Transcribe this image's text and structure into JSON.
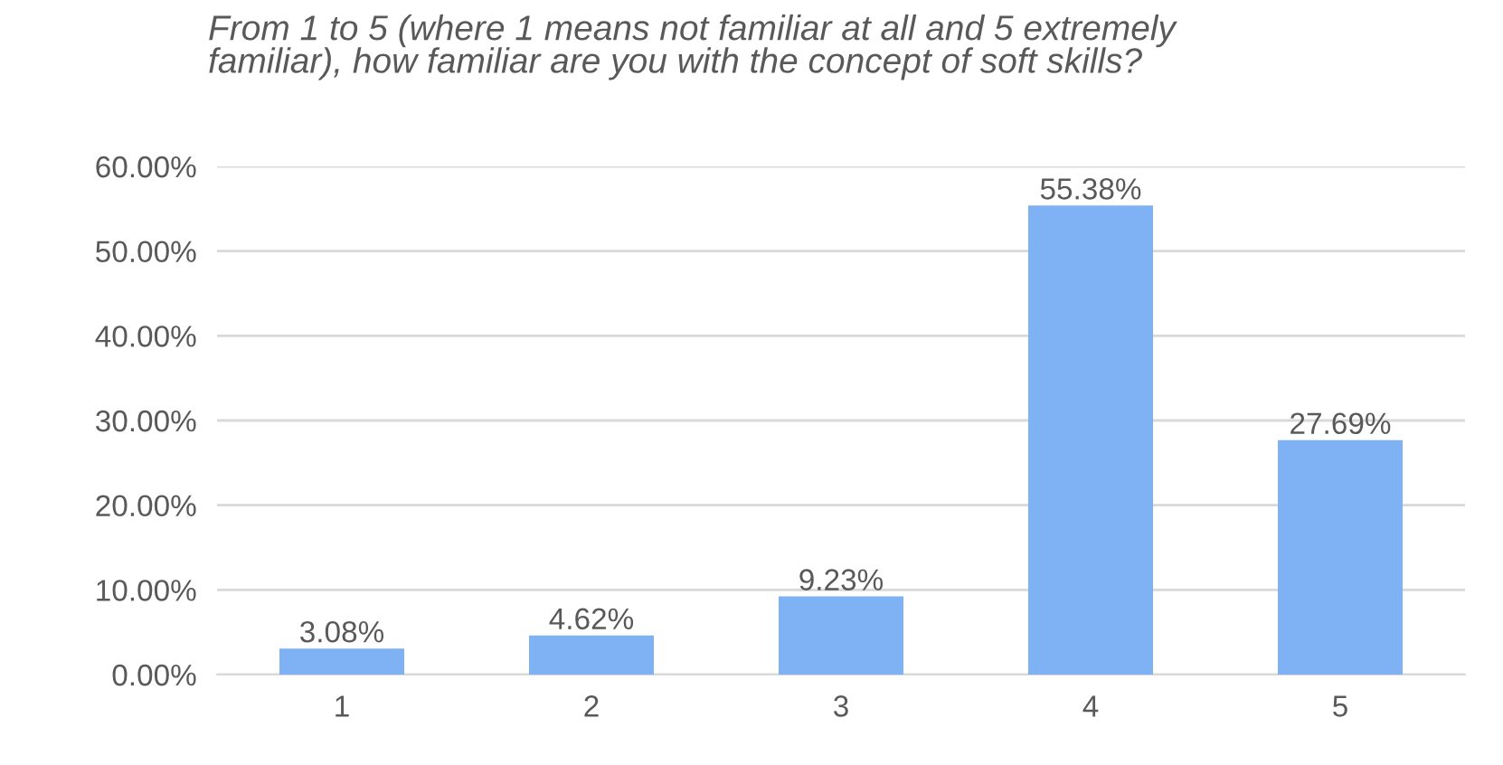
{
  "chart_data": {
    "type": "bar",
    "title": "From 1 to 5 (where 1 means not familiar at all and 5 extremely\nfamiliar), how familiar are you with the concept of soft skills?",
    "categories": [
      "1",
      "2",
      "3",
      "4",
      "5"
    ],
    "values": [
      3.08,
      4.62,
      9.23,
      55.38,
      27.69
    ],
    "value_labels": [
      "3.08%",
      "4.62%",
      "9.23%",
      "55.38%",
      "27.69%"
    ],
    "color": "#7fb2f4",
    "ylim": [
      0,
      60
    ],
    "yticks": [
      {
        "value": 0,
        "label": "0.00%"
      },
      {
        "value": 10,
        "label": "10.00%"
      },
      {
        "value": 20,
        "label": "20.00%"
      },
      {
        "value": 30,
        "label": "30.00%"
      },
      {
        "value": 40,
        "label": "40.00%"
      },
      {
        "value": 50,
        "label": "50.00%"
      },
      {
        "value": 60,
        "label": "60.00%"
      }
    ],
    "grid": "y",
    "legend": false
  }
}
